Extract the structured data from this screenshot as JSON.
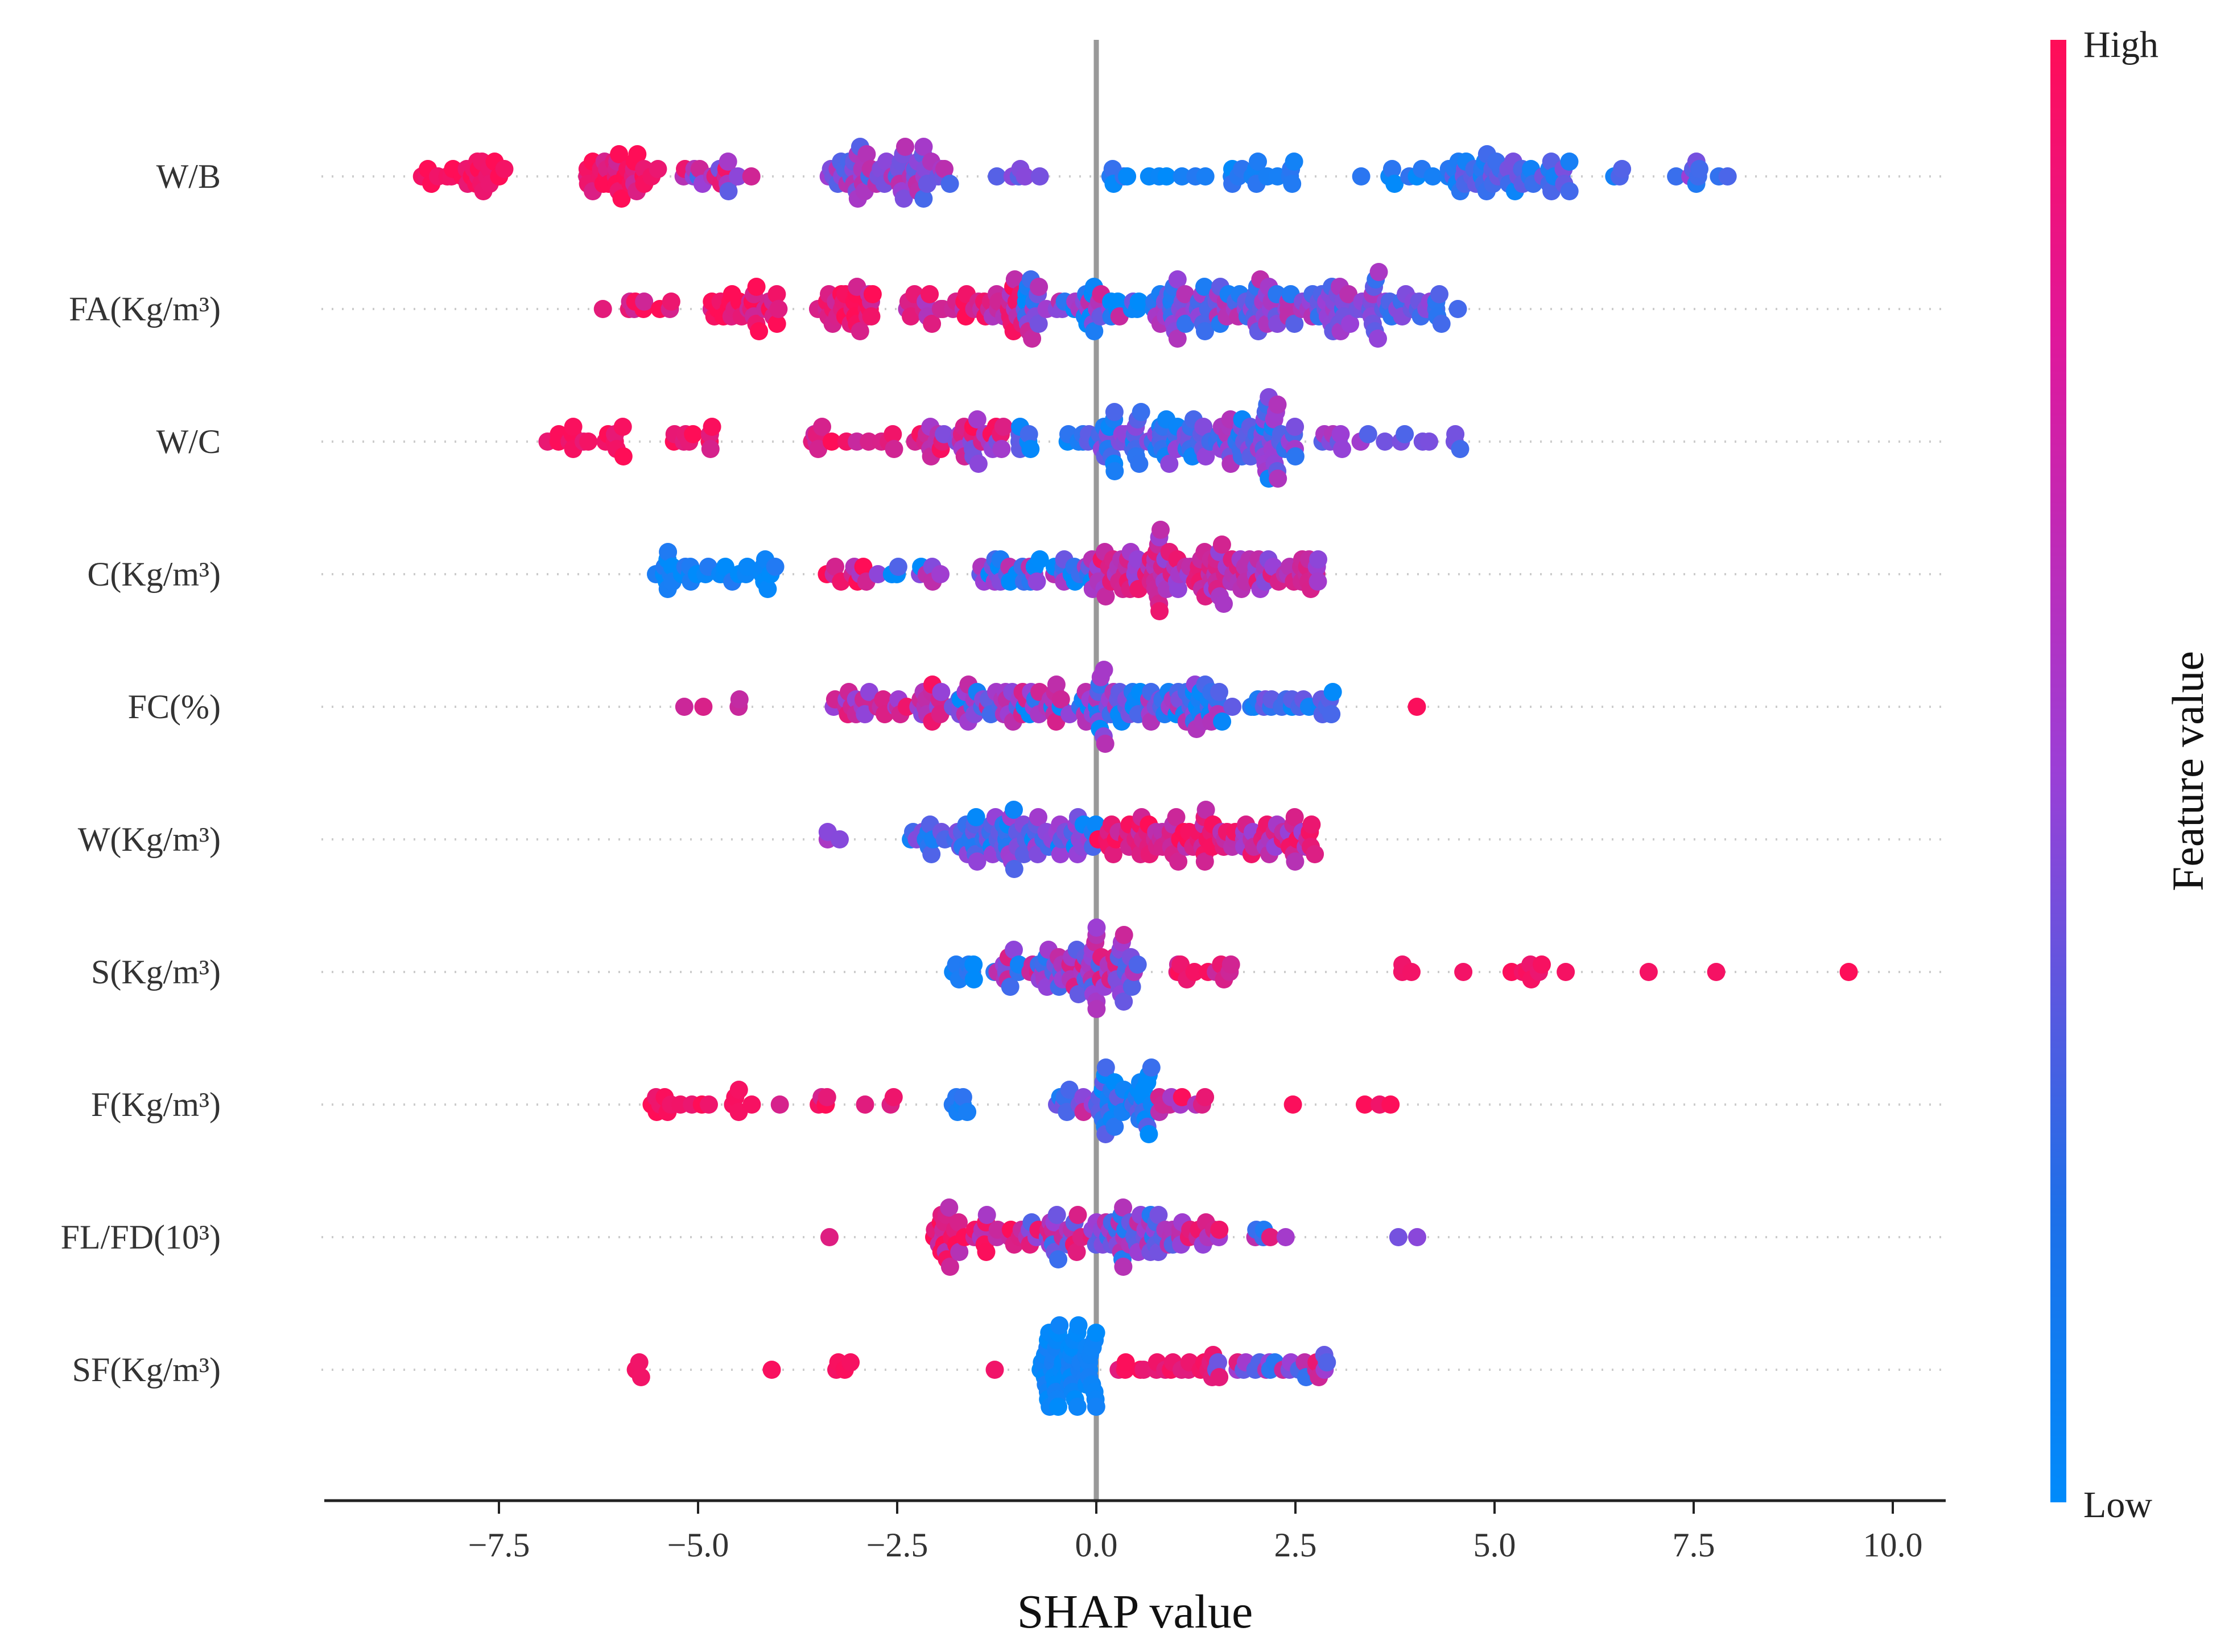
{
  "chart_data": {
    "type": "scatter",
    "subtype": "shap-beeswarm",
    "xlabel": "SHAP value",
    "xlim": [
      -9.8,
      10.6
    ],
    "xticks": [
      -7.5,
      -5.0,
      -2.5,
      0.0,
      2.5,
      5.0,
      7.5,
      10.0
    ],
    "xtick_labels": [
      "−7.5",
      "−5.0",
      "−2.5",
      "0.0",
      "2.5",
      "5.0",
      "7.5",
      "10.0"
    ],
    "features": [
      "W/B",
      "FA(Kg/m³)",
      "W/C",
      "C(Kg/m³)",
      "FC(%)",
      "W(Kg/m³)",
      "S(Kg/m³)",
      "F(Kg/m³)",
      "FL/FD(10³)",
      "SF(Kg/m³)"
    ],
    "colorbar": {
      "title": "Feature value",
      "high_label": "High",
      "low_label": "Low",
      "high_color": "#ff0d57",
      "mid_color": "#9b3fd6",
      "low_color": "#1e88e5",
      "low_end_color": "#008bfb"
    },
    "zero_line_color": "#999999",
    "series": [
      {
        "feature": "W/B",
        "clusters": [
          [
            -8.6,
            -7.4,
            26,
            0.95,
            0.05
          ],
          [
            -6.4,
            -5.5,
            34,
            0.9,
            0.1
          ],
          [
            -5.3,
            -4.3,
            18,
            0.6,
            0.25
          ],
          [
            -3.4,
            -1.8,
            60,
            0.45,
            0.15
          ],
          [
            -1.6,
            -0.5,
            6,
            0.4,
            0.1
          ],
          [
            0.1,
            2.5,
            26,
            0.08,
            0.06
          ],
          [
            3.3,
            4.3,
            8,
            0.08,
            0.05
          ],
          [
            4.4,
            6.0,
            48,
            0.22,
            0.12
          ],
          [
            6.2,
            8.0,
            12,
            0.3,
            0.15
          ]
        ]
      },
      {
        "feature": "FA(Kg/m³)",
        "clusters": [
          [
            -6.2,
            -5.3,
            10,
            0.9,
            0.1
          ],
          [
            -4.9,
            -3.9,
            30,
            0.9,
            0.1
          ],
          [
            -3.5,
            -2.8,
            30,
            0.88,
            0.12
          ],
          [
            -2.5,
            -0.9,
            42,
            0.8,
            0.15
          ],
          [
            -0.9,
            0.7,
            48,
            0.35,
            0.3
          ],
          [
            0.7,
            2.1,
            60,
            0.38,
            0.2
          ],
          [
            2.1,
            3.6,
            58,
            0.4,
            0.18
          ],
          [
            3.6,
            4.6,
            22,
            0.3,
            0.12
          ]
        ]
      },
      {
        "feature": "W/C",
        "clusters": [
          [
            -7.1,
            -5.9,
            16,
            0.95,
            0.05
          ],
          [
            -5.4,
            -4.8,
            10,
            0.9,
            0.08
          ],
          [
            -3.6,
            -2.5,
            14,
            0.85,
            0.1
          ],
          [
            -2.3,
            -1.1,
            36,
            0.7,
            0.2
          ],
          [
            -1.0,
            0.0,
            14,
            0.2,
            0.12
          ],
          [
            0.0,
            1.2,
            50,
            0.25,
            0.15
          ],
          [
            1.2,
            2.5,
            64,
            0.35,
            0.2
          ],
          [
            2.5,
            4.6,
            18,
            0.45,
            0.15
          ]
        ]
      },
      {
        "feature": "C(Kg/m³)",
        "clusters": [
          [
            -5.6,
            -4.0,
            32,
            0.05,
            0.05
          ],
          [
            -3.5,
            -2.8,
            10,
            0.8,
            0.15
          ],
          [
            -2.8,
            -1.9,
            10,
            0.3,
            0.25
          ],
          [
            -1.5,
            0.0,
            40,
            0.3,
            0.25
          ],
          [
            0.0,
            1.4,
            66,
            0.7,
            0.15
          ],
          [
            1.4,
            2.8,
            56,
            0.65,
            0.15
          ]
        ]
      },
      {
        "feature": "FC(%)",
        "clusters": [
          [
            -5.4,
            -4.0,
            4,
            0.75,
            0.15
          ],
          [
            -3.3,
            -1.8,
            36,
            0.7,
            0.18
          ],
          [
            -1.8,
            -0.1,
            56,
            0.4,
            0.25
          ],
          [
            -0.1,
            1.6,
            74,
            0.3,
            0.22
          ],
          [
            1.6,
            3.0,
            22,
            0.2,
            0.12
          ],
          [
            4.0,
            4.05,
            1,
            0.95,
            0.02
          ]
        ]
      },
      {
        "feature": "W(Kg/m³)",
        "clusters": [
          [
            -3.4,
            -3.2,
            3,
            0.5,
            0.05
          ],
          [
            -2.4,
            -1.5,
            26,
            0.25,
            0.15
          ],
          [
            -1.5,
            0.0,
            60,
            0.25,
            0.18
          ],
          [
            0.0,
            1.5,
            54,
            0.82,
            0.12
          ],
          [
            1.5,
            2.8,
            42,
            0.72,
            0.15
          ]
        ]
      },
      {
        "feature": "S(Kg/m³)",
        "clusters": [
          [
            -1.8,
            -1.5,
            8,
            0.08,
            0.05
          ],
          [
            -1.3,
            0.0,
            50,
            0.45,
            0.25
          ],
          [
            0.0,
            0.6,
            30,
            0.55,
            0.2
          ],
          [
            0.6,
            1.7,
            12,
            0.85,
            0.1
          ],
          [
            3.7,
            4.0,
            3,
            0.95,
            0.03
          ],
          [
            4.5,
            5.9,
            9,
            0.95,
            0.04
          ],
          [
            6.7,
            9.8,
            3,
            0.97,
            0.02
          ]
        ]
      },
      {
        "feature": "F(Kg/m³)",
        "clusters": [
          [
            -5.6,
            -4.2,
            16,
            0.95,
            0.05
          ],
          [
            -4.0,
            -2.5,
            8,
            0.8,
            0.15
          ],
          [
            -1.9,
            -1.6,
            6,
            0.08,
            0.05
          ],
          [
            -0.5,
            0.0,
            10,
            0.4,
            0.25
          ],
          [
            0.0,
            0.7,
            40,
            0.15,
            0.12
          ],
          [
            0.7,
            1.4,
            10,
            0.75,
            0.15
          ],
          [
            2.0,
            4.1,
            4,
            0.95,
            0.03
          ]
        ]
      },
      {
        "feature": "FL/FD(10³)",
        "clusters": [
          [
            -3.4,
            -3.3,
            1,
            0.8,
            0.05
          ],
          [
            -2.1,
            -0.9,
            36,
            0.8,
            0.15
          ],
          [
            -0.9,
            0.0,
            30,
            0.55,
            0.25
          ],
          [
            0.0,
            1.0,
            46,
            0.4,
            0.2
          ],
          [
            1.0,
            1.6,
            14,
            0.7,
            0.15
          ],
          [
            1.9,
            2.4,
            6,
            0.4,
            0.3
          ],
          [
            3.2,
            4.3,
            2,
            0.3,
            0.15
          ]
        ]
      },
      {
        "feature": "SF(Kg/m³)",
        "clusters": [
          [
            -5.8,
            -5.7,
            3,
            0.95,
            0.02
          ],
          [
            -4.1,
            -4.05,
            1,
            0.95,
            0.02
          ],
          [
            -3.3,
            -3.0,
            4,
            0.95,
            0.02
          ],
          [
            -1.3,
            -1.25,
            1,
            0.95,
            0.02
          ],
          [
            -0.7,
            0.0,
            60,
            0.03,
            0.03
          ],
          [
            0.2,
            1.6,
            20,
            0.92,
            0.05
          ],
          [
            1.4,
            2.9,
            24,
            0.5,
            0.25
          ]
        ]
      }
    ]
  }
}
